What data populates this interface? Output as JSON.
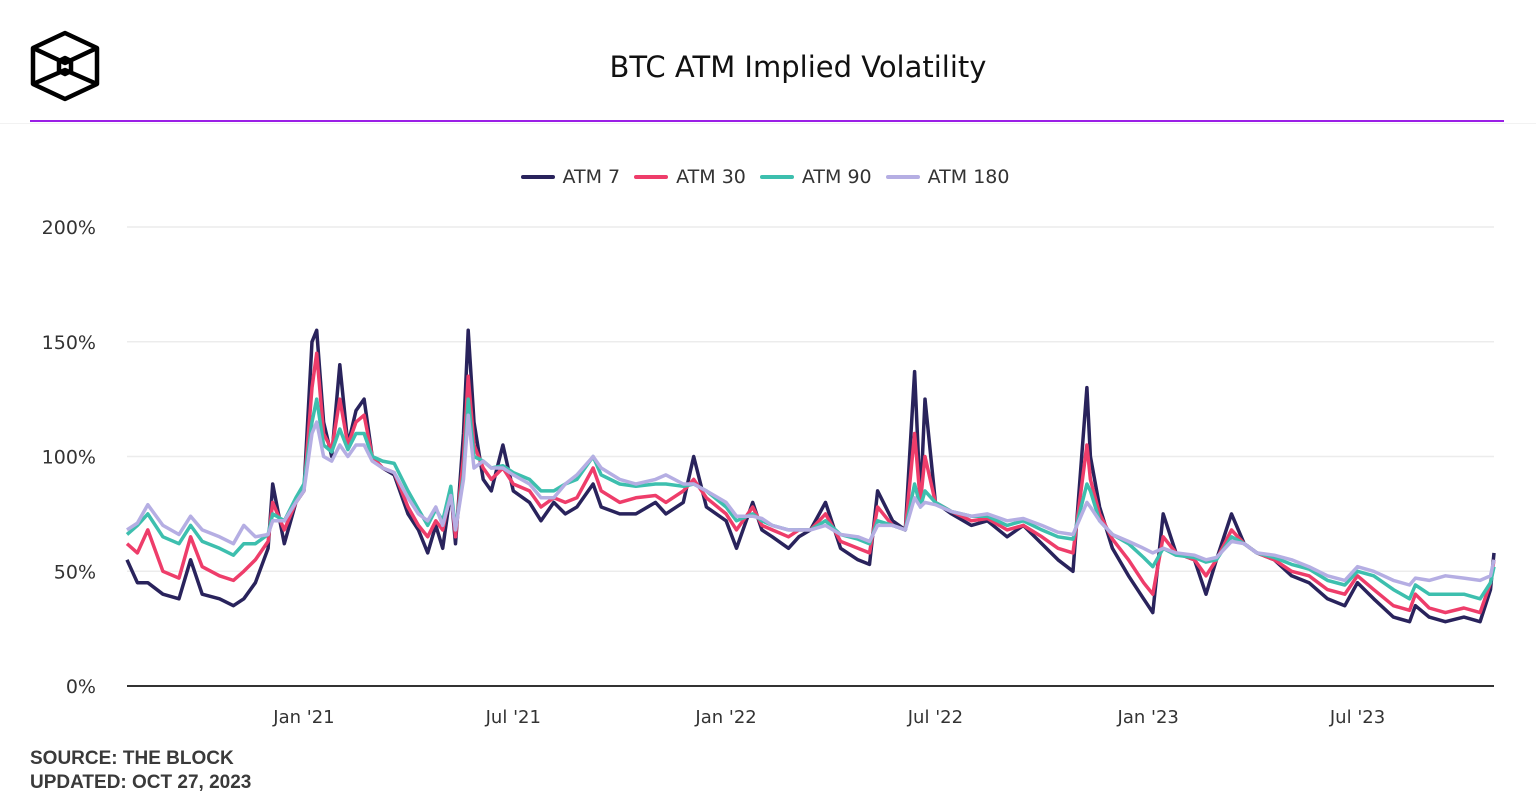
{
  "logo_name": "The Block",
  "colors": {
    "accent": "#9a1fe6",
    "atm7": "#29235c",
    "atm30": "#ee3d6a",
    "atm90": "#3dbfae",
    "atm180": "#b5aee3"
  },
  "footer": {
    "source": "SOURCE: THE BLOCK",
    "updated": "UPDATED: OCT 27, 2023"
  },
  "chart_data": {
    "type": "line",
    "title": "BTC ATM Implied Volatility",
    "xlabel": "",
    "ylabel": "",
    "ylim": [
      0,
      200
    ],
    "xlim": [
      "2020-08-01",
      "2023-10-27"
    ],
    "grid": true,
    "legend": "top-center",
    "y_ticks": [
      "0%",
      "50%",
      "100%",
      "150%",
      "200%"
    ],
    "x_ticks": [
      {
        "date": "2021-01-01",
        "label": "Jan '21"
      },
      {
        "date": "2021-07-01",
        "label": "Jul '21"
      },
      {
        "date": "2022-01-01",
        "label": "Jan '22"
      },
      {
        "date": "2022-07-01",
        "label": "Jul '22"
      },
      {
        "date": "2023-01-01",
        "label": "Jan '23"
      },
      {
        "date": "2023-07-01",
        "label": "Jul '23"
      }
    ],
    "x": [
      "2020-08-01",
      "2020-08-10",
      "2020-08-19",
      "2020-09-01",
      "2020-09-15",
      "2020-09-25",
      "2020-10-05",
      "2020-10-20",
      "2020-11-01",
      "2020-11-10",
      "2020-11-20",
      "2020-12-01",
      "2020-12-05",
      "2020-12-15",
      "2020-12-25",
      "2021-01-01",
      "2021-01-08",
      "2021-01-12",
      "2021-01-18",
      "2021-01-25",
      "2021-02-01",
      "2021-02-08",
      "2021-02-15",
      "2021-02-22",
      "2021-03-01",
      "2021-03-10",
      "2021-03-20",
      "2021-04-01",
      "2021-04-10",
      "2021-04-18",
      "2021-04-25",
      "2021-05-01",
      "2021-05-08",
      "2021-05-12",
      "2021-05-19",
      "2021-05-23",
      "2021-05-28",
      "2021-06-05",
      "2021-06-12",
      "2021-06-22",
      "2021-07-01",
      "2021-07-15",
      "2021-07-25",
      "2021-08-05",
      "2021-08-15",
      "2021-08-25",
      "2021-09-08",
      "2021-09-15",
      "2021-10-01",
      "2021-10-15",
      "2021-11-01",
      "2021-11-10",
      "2021-11-25",
      "2021-12-04",
      "2021-12-15",
      "2022-01-01",
      "2022-01-10",
      "2022-01-24",
      "2022-02-01",
      "2022-02-10",
      "2022-02-24",
      "2022-03-05",
      "2022-03-15",
      "2022-03-28",
      "2022-04-10",
      "2022-04-25",
      "2022-05-05",
      "2022-05-12",
      "2022-05-25",
      "2022-06-05",
      "2022-06-13",
      "2022-06-18",
      "2022-06-22",
      "2022-07-01",
      "2022-07-15",
      "2022-08-01",
      "2022-08-15",
      "2022-09-01",
      "2022-09-15",
      "2022-10-01",
      "2022-10-15",
      "2022-10-28",
      "2022-11-09",
      "2022-11-12",
      "2022-11-20",
      "2022-12-01",
      "2022-12-15",
      "2022-12-28",
      "2023-01-05",
      "2023-01-14",
      "2023-01-25",
      "2023-02-10",
      "2023-02-20",
      "2023-03-01",
      "2023-03-14",
      "2023-03-25",
      "2023-04-05",
      "2023-04-20",
      "2023-05-05",
      "2023-05-20",
      "2023-06-05",
      "2023-06-20",
      "2023-07-01",
      "2023-07-15",
      "2023-08-01",
      "2023-08-15",
      "2023-08-20",
      "2023-09-01",
      "2023-09-15",
      "2023-10-01",
      "2023-10-15",
      "2023-10-24",
      "2023-10-27"
    ],
    "series": [
      {
        "name": "ATM 7",
        "values": [
          55,
          45,
          45,
          40,
          38,
          55,
          40,
          38,
          35,
          38,
          45,
          60,
          88,
          62,
          80,
          85,
          150,
          155,
          115,
          100,
          140,
          105,
          120,
          125,
          100,
          95,
          92,
          75,
          68,
          58,
          70,
          60,
          85,
          62,
          110,
          155,
          115,
          90,
          85,
          105,
          85,
          80,
          72,
          80,
          75,
          78,
          88,
          78,
          75,
          75,
          80,
          75,
          80,
          100,
          78,
          72,
          60,
          80,
          68,
          65,
          60,
          65,
          68,
          80,
          60,
          55,
          53,
          85,
          72,
          68,
          137,
          80,
          125,
          80,
          75,
          70,
          72,
          65,
          70,
          62,
          55,
          50,
          130,
          100,
          78,
          60,
          48,
          38,
          32,
          75,
          58,
          55,
          40,
          55,
          75,
          62,
          58,
          55,
          48,
          45,
          38,
          35,
          45,
          38,
          30,
          28,
          35,
          30,
          28,
          30,
          28,
          42,
          58
        ]
      },
      {
        "name": "ATM 30",
        "values": [
          62,
          58,
          68,
          50,
          47,
          65,
          52,
          48,
          46,
          50,
          55,
          63,
          80,
          68,
          80,
          85,
          130,
          145,
          110,
          103,
          125,
          105,
          115,
          118,
          100,
          95,
          93,
          78,
          70,
          65,
          72,
          68,
          85,
          65,
          100,
          135,
          105,
          95,
          90,
          95,
          88,
          85,
          78,
          82,
          80,
          82,
          95,
          85,
          80,
          82,
          83,
          80,
          85,
          90,
          82,
          75,
          68,
          78,
          70,
          68,
          65,
          68,
          68,
          75,
          63,
          60,
          58,
          78,
          70,
          68,
          110,
          80,
          100,
          80,
          76,
          72,
          73,
          68,
          70,
          65,
          60,
          58,
          105,
          90,
          75,
          64,
          55,
          45,
          40,
          65,
          58,
          55,
          48,
          55,
          68,
          62,
          58,
          55,
          50,
          48,
          42,
          40,
          48,
          42,
          35,
          33,
          40,
          34,
          32,
          34,
          32,
          45,
          55
        ]
      },
      {
        "name": "ATM 90",
        "values": [
          66,
          70,
          75,
          65,
          62,
          70,
          63,
          60,
          57,
          62,
          62,
          66,
          75,
          72,
          82,
          88,
          115,
          125,
          105,
          102,
          112,
          103,
          110,
          110,
          100,
          98,
          97,
          85,
          77,
          70,
          77,
          72,
          87,
          68,
          92,
          125,
          100,
          98,
          95,
          96,
          93,
          90,
          85,
          85,
          88,
          90,
          100,
          92,
          88,
          87,
          88,
          88,
          87,
          88,
          85,
          78,
          72,
          75,
          72,
          70,
          68,
          68,
          68,
          72,
          66,
          64,
          62,
          72,
          70,
          68,
          88,
          78,
          85,
          80,
          76,
          74,
          74,
          70,
          72,
          68,
          65,
          64,
          88,
          85,
          72,
          66,
          62,
          56,
          52,
          60,
          57,
          56,
          54,
          55,
          65,
          62,
          58,
          56,
          53,
          51,
          46,
          44,
          50,
          48,
          42,
          38,
          44,
          40,
          40,
          40,
          38,
          45,
          52
        ]
      },
      {
        "name": "ATM 180",
        "values": [
          68,
          71,
          79,
          70,
          66,
          74,
          68,
          65,
          62,
          70,
          65,
          66,
          72,
          72,
          80,
          85,
          110,
          115,
          100,
          98,
          105,
          100,
          105,
          105,
          98,
          95,
          93,
          82,
          75,
          72,
          78,
          70,
          83,
          68,
          90,
          118,
          95,
          98,
          95,
          95,
          92,
          88,
          82,
          82,
          88,
          92,
          100,
          95,
          90,
          88,
          90,
          92,
          88,
          88,
          85,
          80,
          74,
          74,
          73,
          70,
          68,
          68,
          68,
          70,
          66,
          65,
          63,
          70,
          70,
          68,
          82,
          78,
          80,
          79,
          76,
          74,
          75,
          72,
          73,
          70,
          67,
          66,
          80,
          78,
          72,
          66,
          63,
          60,
          58,
          60,
          58,
          57,
          55,
          56,
          63,
          62,
          58,
          57,
          55,
          52,
          48,
          46,
          52,
          50,
          46,
          44,
          47,
          46,
          48,
          47,
          46,
          48,
          55
        ]
      }
    ]
  }
}
